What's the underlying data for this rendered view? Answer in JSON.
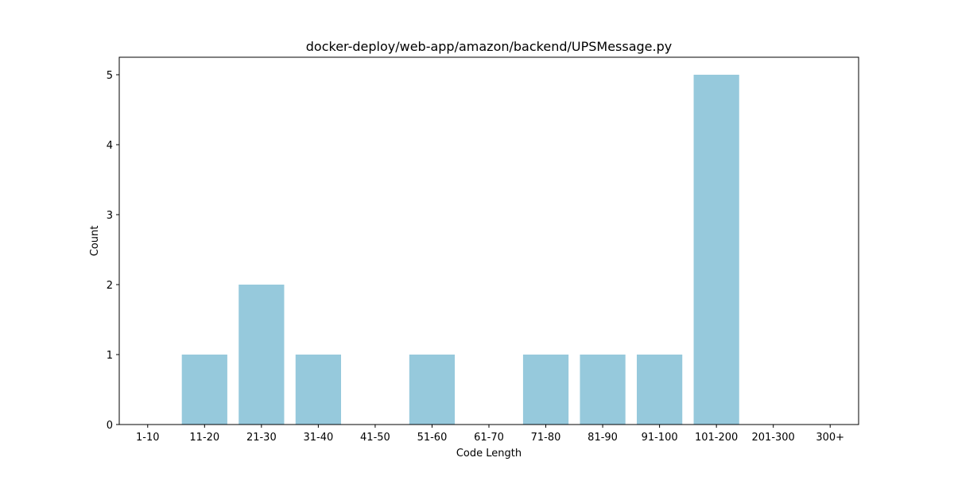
{
  "chart_data": {
    "type": "bar",
    "title": "docker-deploy/web-app/amazon/backend/UPSMessage.py",
    "xlabel": "Code Length",
    "ylabel": "Count",
    "categories": [
      "1-10",
      "11-20",
      "21-30",
      "31-40",
      "41-50",
      "51-60",
      "61-70",
      "71-80",
      "81-90",
      "91-100",
      "101-200",
      "201-300",
      "300+"
    ],
    "values": [
      0,
      1,
      2,
      1,
      0,
      1,
      0,
      1,
      1,
      1,
      5,
      0,
      0
    ],
    "yticks": [
      0,
      1,
      2,
      3,
      4,
      5
    ],
    "ylim": [
      0,
      5.25
    ],
    "grid": false,
    "bar_color": "#96c9dc"
  }
}
